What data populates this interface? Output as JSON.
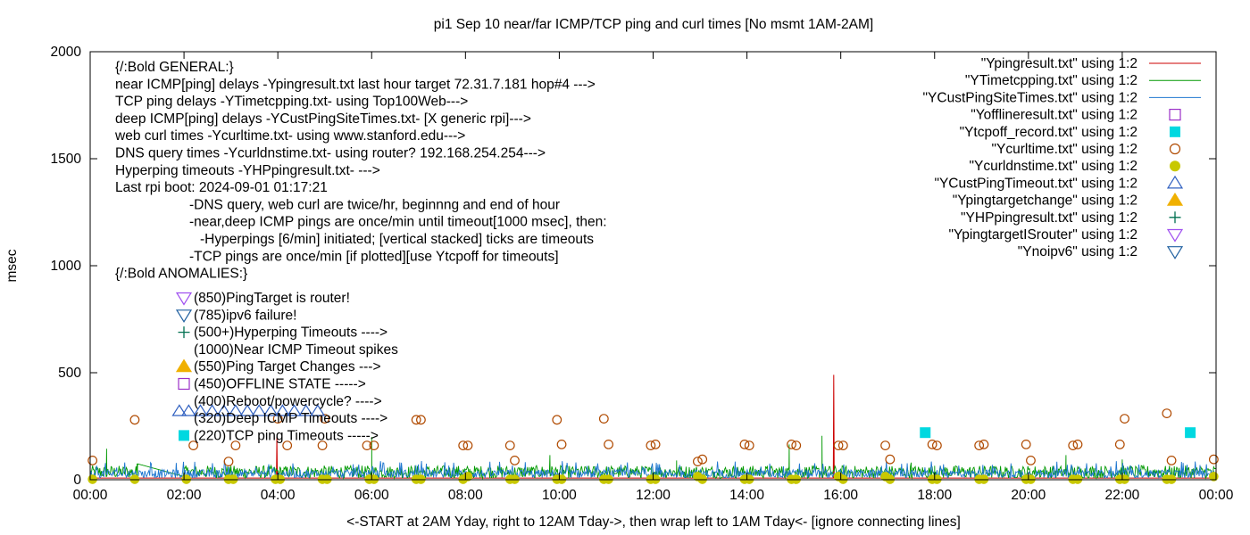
{
  "chart_data": {
    "type": "line",
    "title": "pi1 Sep 10  near/far ICMP/TCP ping and curl times [No msmt 1AM-2AM]",
    "ylabel": "msec",
    "xlabel": "<-START at 2AM Yday, right to 12AM Tday->, then wrap left to 1AM Tday<- [ignore connecting lines]",
    "xlim": [
      0,
      24
    ],
    "ylim": [
      0,
      2000
    ],
    "x_unit": "hours",
    "xticks": [
      "00:00",
      "02:00",
      "04:00",
      "06:00",
      "08:00",
      "10:00",
      "12:00",
      "14:00",
      "16:00",
      "18:00",
      "20:00",
      "22:00",
      "00:00"
    ],
    "yticks": [
      "0",
      "500",
      "1000",
      "1500",
      "2000"
    ],
    "grid": false,
    "legend_position": "top-right",
    "legend": [
      {
        "label": "\"Ypingresult.txt\" using 1:2",
        "marker": "line",
        "color": "#cc0000"
      },
      {
        "label": "\"YTimetcpping.txt\" using 1:2",
        "marker": "line",
        "color": "#009900"
      },
      {
        "label": "\"YCustPingSiteTimes.txt\" using 1:2",
        "marker": "line",
        "color": "#1f77d0"
      },
      {
        "label": "\"Yofflineresult.txt\" using 1:2",
        "marker": "open-square",
        "color": "#9b30c8"
      },
      {
        "label": "\"Ytcpoff_record.txt\" using 1:2",
        "marker": "filled-square",
        "color": "#00d8e0"
      },
      {
        "label": "\"Ycurltime.txt\" using 1:2",
        "marker": "open-circle",
        "color": "#b04a00"
      },
      {
        "label": "\"Ycurldnstime.txt\" using 1:2",
        "marker": "filled-circle",
        "color": "#c8c800"
      },
      {
        "label": "\"YCustPingTimeout.txt\" using 1:2",
        "marker": "open-triangle-up",
        "color": "#3060c0"
      },
      {
        "label": "\"Ypingtargetchange\" using 1:2",
        "marker": "filled-triangle-up",
        "color": "#f0b000"
      },
      {
        "label": "\"YHPpingresult.txt\" using 1:2",
        "marker": "plus",
        "color": "#007050"
      },
      {
        "label": "\"YpingtargetISrouter\" using 1:2",
        "marker": "open-triangle-down",
        "color": "#a050f0"
      },
      {
        "label": "\"Ynoipv6\" using 1:2",
        "marker": "open-triangle-down",
        "color": "#2060a0"
      }
    ],
    "annotations": [
      "{/:Bold GENERAL:}",
      "near ICMP[ping] delays -Ypingresult.txt last hour target 72.31.7.181 hop#4 --->",
      "TCP ping delays -YTimetcpping.txt- using Top100Web--->",
      "deep ICMP[ping] delays -YCustPingSiteTimes.txt- [X generic rpi]--->",
      "web curl times -Ycurltime.txt- using www.stanford.edu--->",
      "DNS query times -Ycurldnstime.txt- using router? 192.168.254.254--->",
      "Hyperping timeouts -YHPpingresult.txt- --->",
      "Last rpi boot: 2024-09-01 01:17:21",
      "-DNS query, web curl are twice/hr, beginnng and end of hour",
      "-near,deep ICMP pings are once/min until timeout[1000 msec], then:",
      "-Hyperpings [6/min] initiated; [vertical stacked] ticks are timeouts",
      "-TCP pings are once/min [if plotted][use Ytcpoff for timeouts]",
      "{/:Bold ANOMALIES:}"
    ],
    "anomaly_key": [
      {
        "text": "(850)PingTarget is router!",
        "marker": "open-triangle-down",
        "color": "#a050f0"
      },
      {
        "text": "(785)ipv6 failure!",
        "marker": "open-triangle-down",
        "color": "#2060a0"
      },
      {
        "text": "(500+)Hyperping Timeouts ---->",
        "marker": "plus",
        "color": "#007050"
      },
      {
        "text": "(1000)Near ICMP Timeout spikes",
        "marker": "none",
        "color": "#000000"
      },
      {
        "text": "(550)Ping Target Changes --->",
        "marker": "filled-triangle-up",
        "color": "#f0b000"
      },
      {
        "text": "(450)OFFLINE STATE ----->",
        "marker": "open-square",
        "color": "#9b30c8"
      },
      {
        "text": "(400)Reboot/powercycle? ---->",
        "marker": "none",
        "color": "#000000"
      },
      {
        "text": "(320)Deep ICMP Timeouts ---->",
        "marker": "none",
        "color": "#000000"
      },
      {
        "text": "(220)TCP ping Timeouts ----->",
        "marker": "filled-square",
        "color": "#00d8e0"
      }
    ],
    "series": [
      {
        "name": "\"Ypingresult.txt\" using 1:2",
        "style": "line",
        "color": "#cc0000",
        "baseline_msec": 8,
        "spikes": [
          {
            "x": 3.98,
            "y": 200
          },
          {
            "x": 15.85,
            "y": 490
          }
        ]
      },
      {
        "name": "\"YTimetcpping.txt\" using 1:2",
        "style": "line",
        "color": "#009900",
        "baseline_msec": 40,
        "spikes": [
          {
            "x": 0.35,
            "y": 145
          },
          {
            "x": 1.0,
            "y": 75
          },
          {
            "x": 2.0,
            "y": 45
          },
          {
            "x": 6.0,
            "y": 200
          },
          {
            "x": 9.8,
            "y": 115
          },
          {
            "x": 12.5,
            "y": 90
          },
          {
            "x": 14.9,
            "y": 165
          },
          {
            "x": 15.6,
            "y": 205
          },
          {
            "x": 17.5,
            "y": 80
          },
          {
            "x": 18.0,
            "y": 65
          },
          {
            "x": 20.8,
            "y": 115
          },
          {
            "x": 22.0,
            "y": 95
          }
        ]
      },
      {
        "name": "\"YCustPingSiteTimes.txt\" using 1:2",
        "style": "line",
        "color": "#1f77d0",
        "baseline_msec": 35,
        "peak_msec": 80
      },
      {
        "name": "\"Ytcpoff_record.txt\" using 1:2",
        "style": "filled-square",
        "color": "#00d8e0",
        "points": [
          [
            17.8,
            220
          ],
          [
            23.45,
            220
          ]
        ]
      },
      {
        "name": "\"Ycurltime.txt\" using 1:2",
        "style": "open-circle",
        "color": "#b04a00",
        "points": [
          [
            0.05,
            90
          ],
          [
            0.95,
            280
          ],
          [
            2.2,
            160
          ],
          [
            2.95,
            85
          ],
          [
            3.1,
            160
          ],
          [
            4.0,
            285
          ],
          [
            4.2,
            160
          ],
          [
            4.95,
            160
          ],
          [
            5.0,
            285
          ],
          [
            5.9,
            160
          ],
          [
            6.05,
            160
          ],
          [
            6.95,
            280
          ],
          [
            7.05,
            280
          ],
          [
            7.95,
            160
          ],
          [
            8.05,
            160
          ],
          [
            8.95,
            160
          ],
          [
            9.05,
            90
          ],
          [
            9.95,
            280
          ],
          [
            10.05,
            165
          ],
          [
            10.95,
            285
          ],
          [
            11.05,
            165
          ],
          [
            11.95,
            160
          ],
          [
            12.05,
            165
          ],
          [
            12.95,
            85
          ],
          [
            13.05,
            95
          ],
          [
            13.95,
            165
          ],
          [
            14.05,
            160
          ],
          [
            14.95,
            165
          ],
          [
            15.05,
            160
          ],
          [
            15.95,
            160
          ],
          [
            16.05,
            160
          ],
          [
            16.95,
            160
          ],
          [
            17.05,
            95
          ],
          [
            17.95,
            165
          ],
          [
            18.05,
            160
          ],
          [
            18.95,
            160
          ],
          [
            19.05,
            165
          ],
          [
            19.95,
            165
          ],
          [
            20.05,
            90
          ],
          [
            20.95,
            160
          ],
          [
            21.05,
            165
          ],
          [
            21.95,
            165
          ],
          [
            22.05,
            285
          ],
          [
            22.95,
            310
          ],
          [
            23.05,
            90
          ],
          [
            23.95,
            95
          ]
        ]
      },
      {
        "name": "\"Ycurldnstime.txt\" using 1:2",
        "style": "filled-circle",
        "color": "#c8c800",
        "points": [
          [
            0.05,
            2
          ],
          [
            0.95,
            2
          ],
          [
            2.05,
            2
          ],
          [
            2.95,
            2
          ],
          [
            3.05,
            2
          ],
          [
            3.95,
            2
          ],
          [
            4.05,
            2
          ],
          [
            4.95,
            2
          ],
          [
            5.05,
            2
          ],
          [
            5.95,
            2
          ],
          [
            6.05,
            2
          ],
          [
            6.95,
            2
          ],
          [
            7.05,
            2
          ],
          [
            7.95,
            2
          ],
          [
            8.05,
            15
          ],
          [
            8.95,
            2
          ],
          [
            9.05,
            2
          ],
          [
            9.95,
            2
          ],
          [
            10.05,
            2
          ],
          [
            10.95,
            2
          ],
          [
            11.05,
            2
          ],
          [
            11.95,
            2
          ],
          [
            12.05,
            2
          ],
          [
            12.95,
            15
          ],
          [
            13.05,
            2
          ],
          [
            13.95,
            2
          ],
          [
            14.05,
            2
          ],
          [
            14.95,
            2
          ],
          [
            15.05,
            2
          ],
          [
            15.95,
            15
          ],
          [
            16.05,
            2
          ],
          [
            16.95,
            15
          ],
          [
            17.05,
            2
          ],
          [
            17.95,
            2
          ],
          [
            18.05,
            2
          ],
          [
            18.95,
            2
          ],
          [
            19.05,
            2
          ],
          [
            19.95,
            2
          ],
          [
            20.05,
            2
          ],
          [
            20.95,
            2
          ],
          [
            21.05,
            2
          ],
          [
            21.95,
            2
          ],
          [
            22.05,
            2
          ],
          [
            22.95,
            2
          ],
          [
            23.05,
            2
          ],
          [
            23.95,
            15
          ]
        ]
      },
      {
        "name": "\"YCustPingTimeout.txt\" using 1:2",
        "style": "open-triangle-up",
        "color": "#3060c0",
        "points": [
          [
            1.9,
            320
          ],
          [
            2.1,
            320
          ],
          [
            2.35,
            320
          ],
          [
            2.6,
            320
          ],
          [
            2.85,
            320
          ],
          [
            3.1,
            320
          ],
          [
            3.35,
            320
          ],
          [
            3.6,
            320
          ],
          [
            3.85,
            320
          ],
          [
            4.1,
            320
          ],
          [
            4.35,
            320
          ],
          [
            4.6,
            320
          ],
          [
            4.85,
            320
          ]
        ]
      }
    ]
  }
}
